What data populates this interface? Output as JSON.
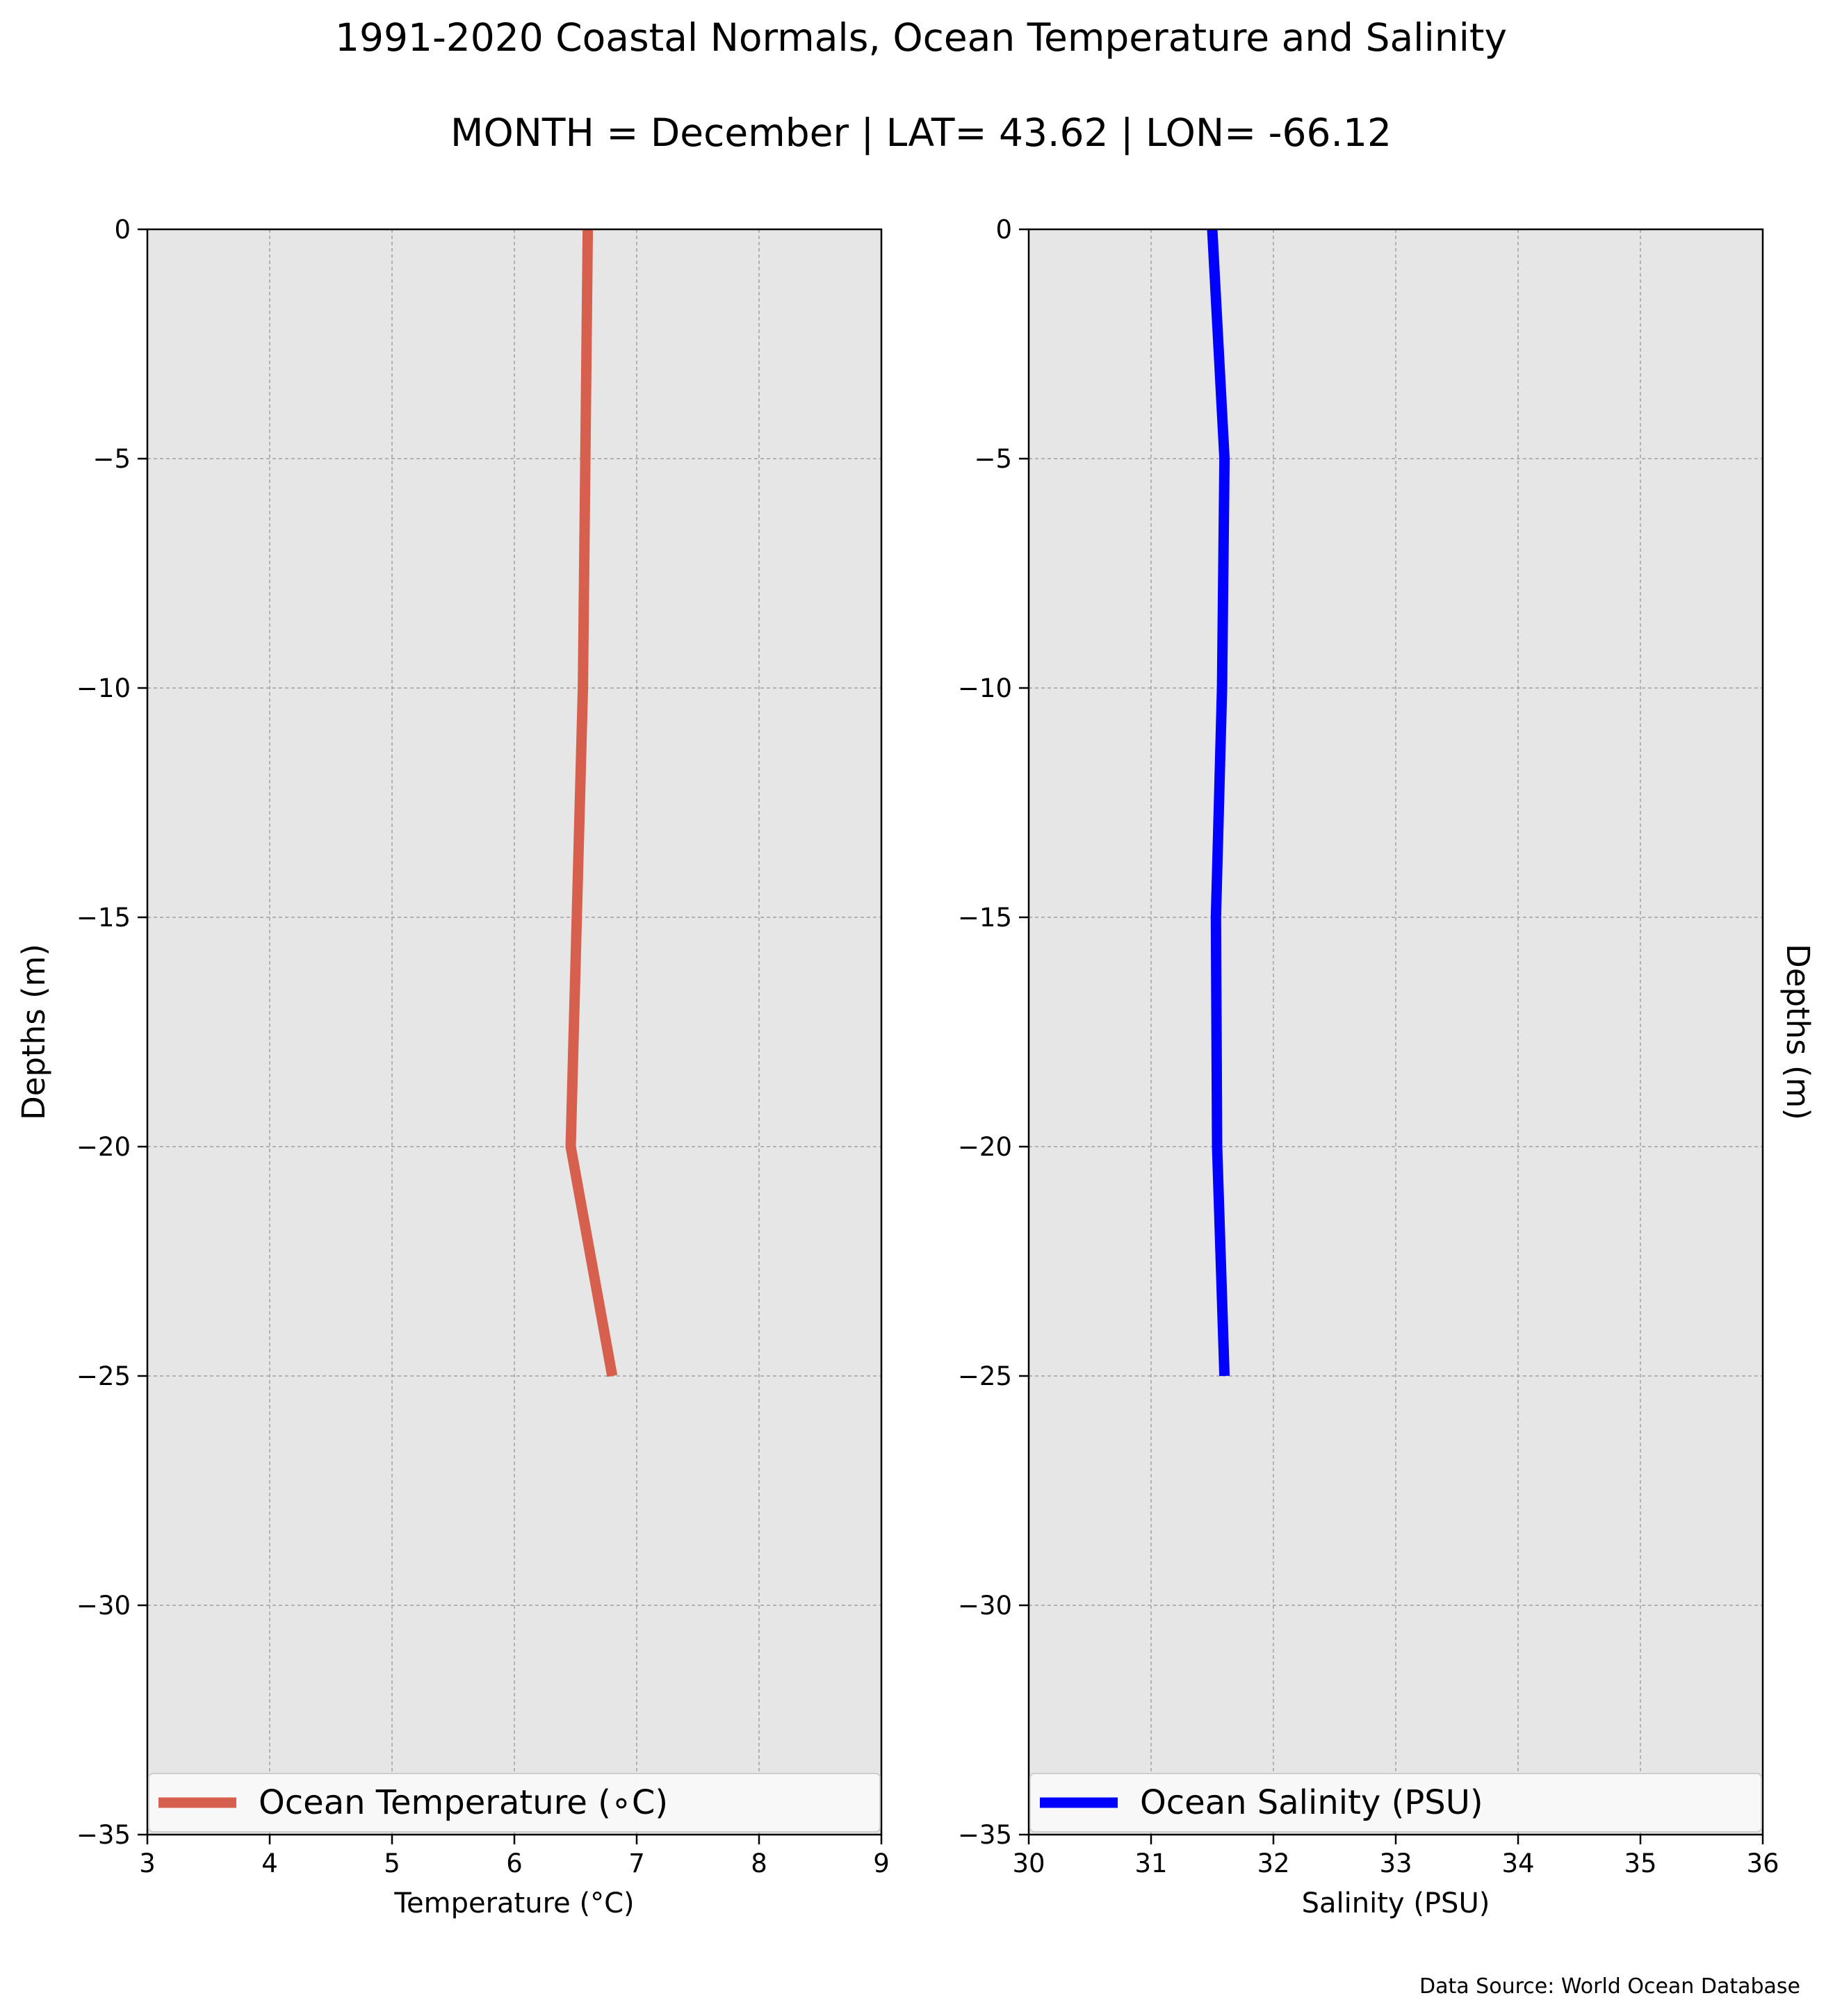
{
  "title": "1991-2020 Coastal Normals, Ocean Temperature and Salinity",
  "subtitle": "MONTH = December | LAT= 43.62 | LON= -66.12",
  "source": "Data Source: World Ocean Database",
  "colors": {
    "figure_background": "#ffffff",
    "plot_background": "#e6e6e6",
    "grid": "#a0a0a0",
    "temperature_line": "#d6604d",
    "salinity_line": "#0000ff",
    "legend_background": "#fafafa"
  },
  "chart_data": [
    {
      "type": "line",
      "orientation": "vertical-profile",
      "xlabel": "Temperature ($^\\circ$C)",
      "xlabel_display": "Temperature (°C)",
      "ylabel": "Depths (m)",
      "ylabel_side": "left",
      "xlim": [
        3,
        9
      ],
      "ylim": [
        -35,
        0
      ],
      "xticks": [
        3,
        4,
        5,
        6,
        7,
        8,
        9
      ],
      "xtick_labels": [
        "3",
        "4",
        "5",
        "6",
        "7",
        "8",
        "9"
      ],
      "yticks": [
        0,
        -5,
        -10,
        -15,
        -20,
        -25,
        -30,
        -35
      ],
      "ytick_labels": [
        "0",
        "−5",
        "−10",
        "−15",
        "−20",
        "−25",
        "−30",
        "−35"
      ],
      "grid": true,
      "legend_position": "bottom",
      "series": [
        {
          "name": "Ocean Temperature (∘C)",
          "color": "#d6604d",
          "x": [
            6.6,
            6.58,
            6.56,
            6.51,
            6.46,
            6.8
          ],
          "y": [
            0,
            -5,
            -10,
            -15,
            -20,
            -25
          ]
        }
      ]
    },
    {
      "type": "line",
      "orientation": "vertical-profile",
      "xlabel": "Salinity (PSU)",
      "ylabel": "Depths (m)",
      "ylabel_side": "right",
      "xlim": [
        30,
        36
      ],
      "ylim": [
        -35,
        0
      ],
      "xticks": [
        30,
        31,
        32,
        33,
        34,
        35,
        36
      ],
      "xtick_labels": [
        "30",
        "31",
        "32",
        "33",
        "34",
        "35",
        "36"
      ],
      "yticks": [
        0,
        -5,
        -10,
        -15,
        -20,
        -25,
        -30,
        -35
      ],
      "ytick_labels": [
        "0",
        "−5",
        "−10",
        "−15",
        "−20",
        "−25",
        "−30",
        "−35"
      ],
      "grid": true,
      "legend_position": "bottom",
      "series": [
        {
          "name": "Ocean Salinity (PSU)",
          "color": "#0000ff",
          "x": [
            31.5,
            31.6,
            31.58,
            31.53,
            31.54,
            31.6
          ],
          "y": [
            0,
            -5,
            -10,
            -15,
            -20,
            -25
          ]
        }
      ]
    }
  ]
}
